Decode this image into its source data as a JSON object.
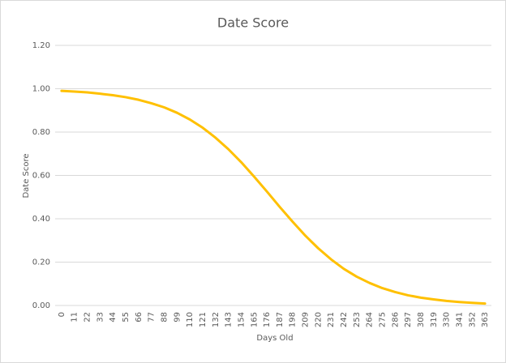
{
  "chart_data": {
    "type": "line",
    "title": "Date Score",
    "x_label": "Days Old",
    "y_label": "Date Score",
    "categories": [
      "0",
      "11",
      "22",
      "33",
      "44",
      "55",
      "66",
      "77",
      "88",
      "99",
      "110",
      "121",
      "132",
      "143",
      "154",
      "165",
      "176",
      "187",
      "198",
      "209",
      "220",
      "231",
      "242",
      "253",
      "264",
      "275",
      "286",
      "297",
      "308",
      "319",
      "330",
      "341",
      "352",
      "363"
    ],
    "series": [
      {
        "name": "Date Score",
        "color": "#ffc000",
        "values": [
          0.99,
          0.987,
          0.983,
          0.977,
          0.97,
          0.961,
          0.949,
          0.933,
          0.914,
          0.889,
          0.858,
          0.82,
          0.774,
          0.721,
          0.661,
          0.595,
          0.526,
          0.455,
          0.387,
          0.322,
          0.264,
          0.213,
          0.169,
          0.133,
          0.104,
          0.08,
          0.062,
          0.047,
          0.036,
          0.028,
          0.021,
          0.016,
          0.012,
          0.009
        ]
      }
    ],
    "ylim": [
      0,
      1.2
    ],
    "yticks": [
      {
        "value": 0,
        "label": "0.00"
      },
      {
        "value": 0.2,
        "label": "0.20"
      },
      {
        "value": 0.4,
        "label": "0.40"
      },
      {
        "value": 0.6,
        "label": "0.60"
      },
      {
        "value": 0.8,
        "label": "0.80"
      },
      {
        "value": 1.0,
        "label": "1.00"
      },
      {
        "value": 1.2,
        "label": "1.20"
      }
    ],
    "grid": true
  }
}
